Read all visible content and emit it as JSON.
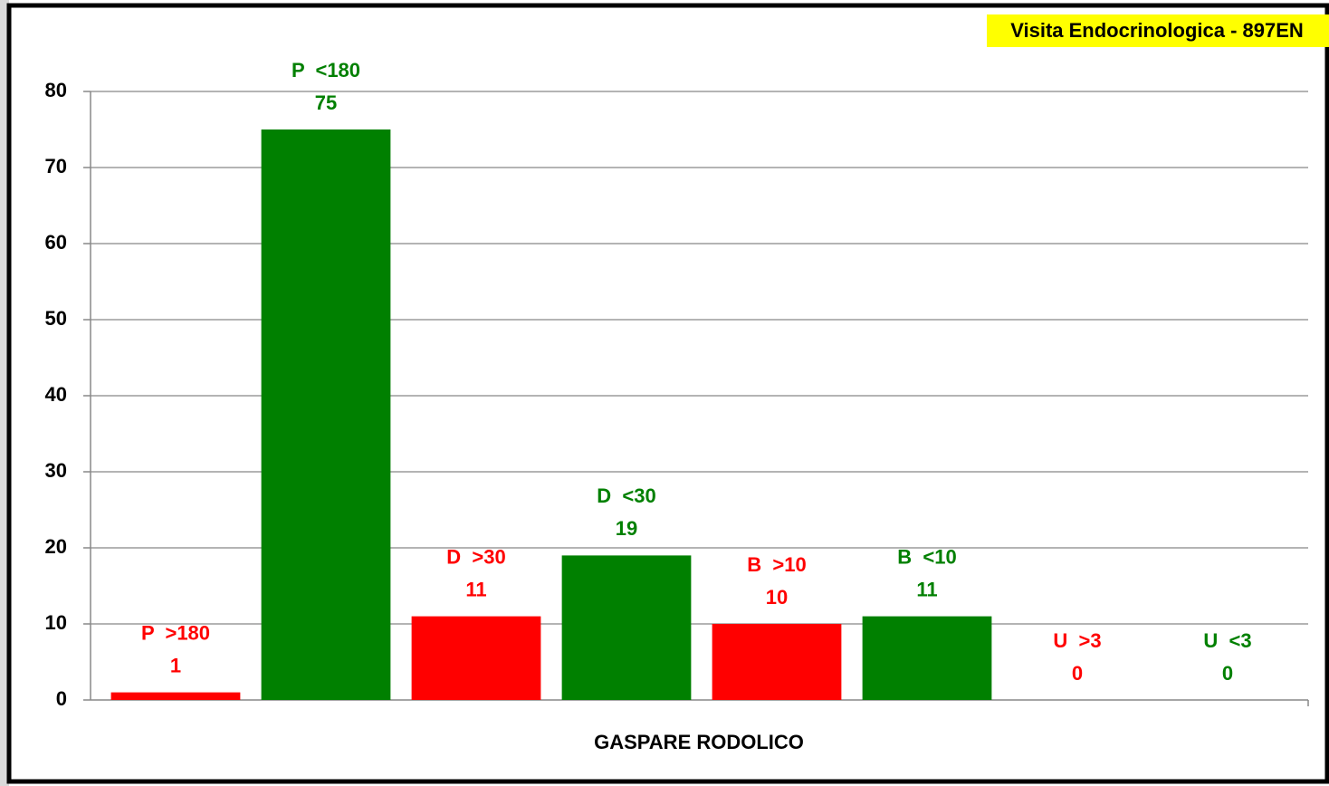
{
  "chart_data": {
    "type": "bar",
    "annotation": "Visita Endocrinologica - 897EN",
    "x_label": "GASPARE RODOLICO",
    "categories": [
      "P  >180",
      "P  <180",
      "D  >30",
      "D  <30",
      "B  >10",
      "B  <10",
      "U  >3",
      "U  <3"
    ],
    "values": [
      1,
      75,
      11,
      19,
      10,
      11,
      0,
      0
    ],
    "colors": [
      "#ff0000",
      "#008000",
      "#ff0000",
      "#008000",
      "#ff0000",
      "#008000",
      "#ff0000",
      "#008000"
    ],
    "ylim": [
      0,
      80
    ],
    "yticks": [
      0,
      10,
      20,
      30,
      40,
      50,
      60,
      70,
      80
    ],
    "grid": true
  }
}
